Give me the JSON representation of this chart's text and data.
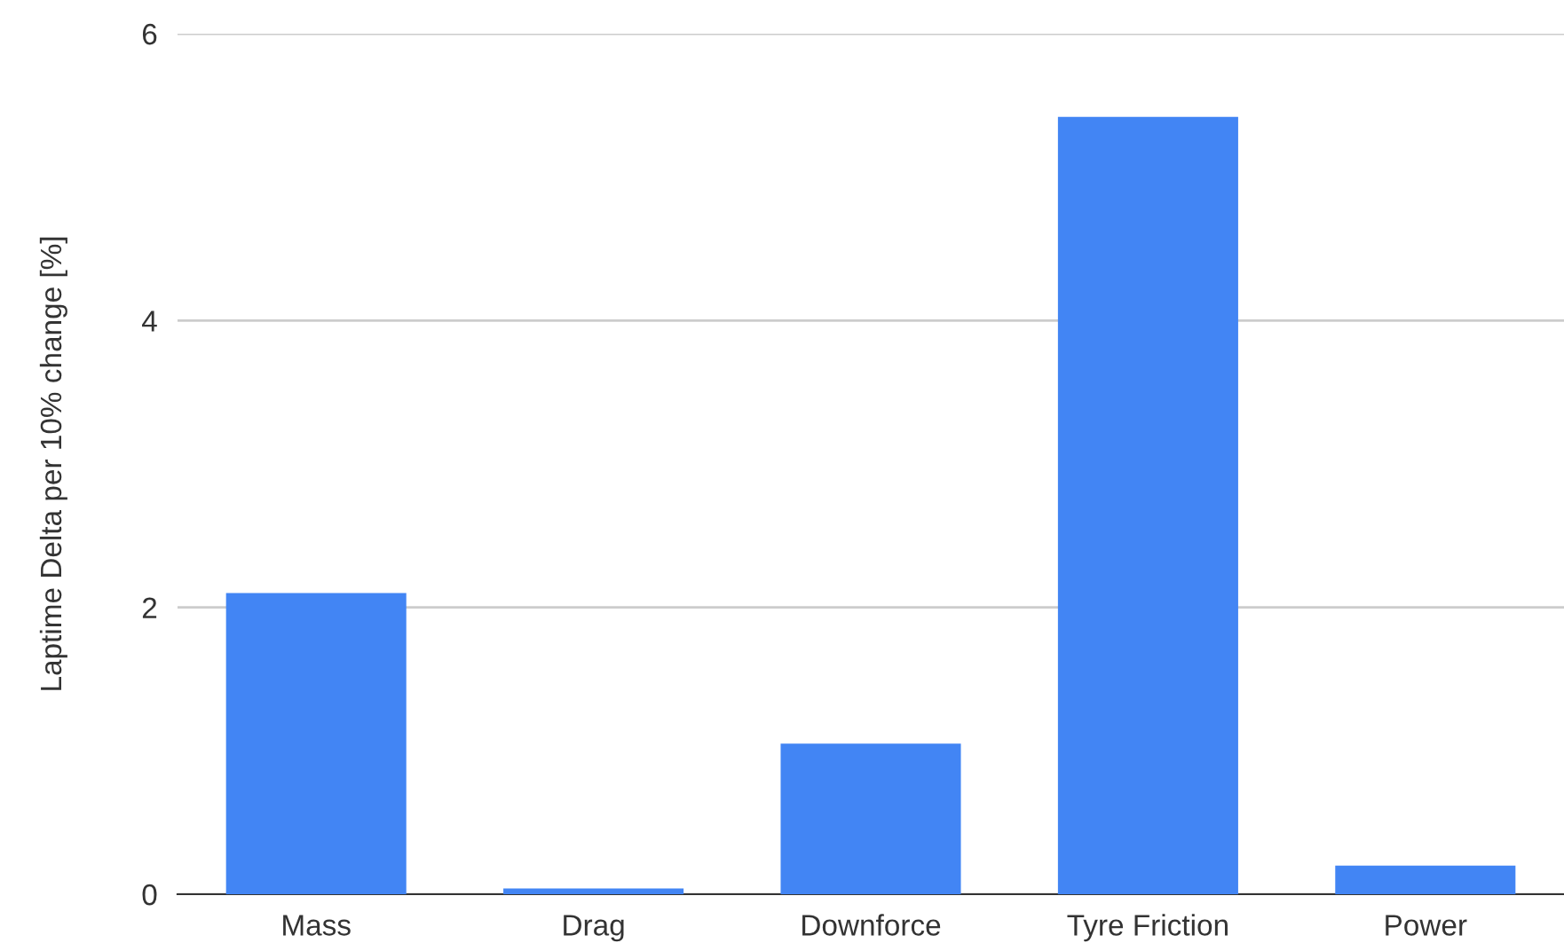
{
  "chart_data": {
    "type": "bar",
    "ylabel": "Laptime Delta per 10% change [%]",
    "categories": [
      "Mass",
      "Drag",
      "Downforce",
      "Tyre Friction",
      "Power"
    ],
    "values": [
      2.1,
      0.04,
      1.05,
      5.42,
      0.2
    ],
    "color": "#4285f4",
    "ylim": [
      0,
      6
    ],
    "yticks": [
      0,
      2,
      4,
      6
    ],
    "grid": "y"
  }
}
